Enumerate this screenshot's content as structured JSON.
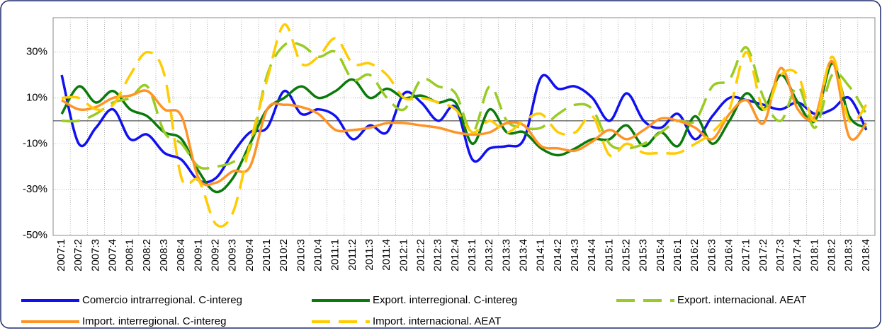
{
  "chart_data": {
    "type": "line",
    "categories": [
      "2007:1",
      "2007:2",
      "2007:3",
      "2007:4",
      "2008:1",
      "2008:2",
      "2008:3",
      "2008:4",
      "2009:1",
      "2009:2",
      "2009:3",
      "2009:4",
      "2010:1",
      "2010:2",
      "2010:3",
      "2010:4",
      "2011:1",
      "2011:2",
      "2011:3",
      "2011:4",
      "2012:1",
      "2012:2",
      "2012:3",
      "2012:4",
      "2013:1",
      "2013:2",
      "2013:3",
      "2013:4",
      "2014:1",
      "2014:2",
      "2014:3",
      "2014:4",
      "2015:1",
      "2015:2",
      "2015:3",
      "2015:4",
      "2016:1",
      "2016:2",
      "2016:3",
      "2016:4",
      "2017:1",
      "2017:2",
      "2017:3",
      "2017:4",
      "2018:1",
      "2018:2",
      "2018:3",
      "2018:4"
    ],
    "ylim": [
      -50,
      45
    ],
    "yticks": [
      {
        "value": -50,
        "label": "-50%"
      },
      {
        "value": -30,
        "label": "-30%"
      },
      {
        "value": -10,
        "label": "-10%"
      },
      {
        "value": 10,
        "label": "10%"
      },
      {
        "value": 30,
        "label": "30%"
      }
    ],
    "grid": true,
    "series": [
      {
        "name": "Comercio intrarregional. C-intereg",
        "color": "#1010f0",
        "dashed": false,
        "values": [
          20,
          -10,
          -3,
          5,
          -8,
          -6,
          -14,
          -17,
          -26,
          -25,
          -14,
          -5,
          -3,
          13,
          3,
          5,
          2,
          -8,
          -2,
          -5,
          12,
          8,
          0,
          6,
          -17,
          -12,
          -11,
          -8,
          19,
          14,
          15,
          10,
          0,
          12,
          0,
          -3,
          3,
          -8,
          2,
          10,
          9,
          7,
          5,
          8,
          3,
          5,
          10,
          -4
        ]
      },
      {
        "name": "Export. interregional. C-intereg",
        "color": "#0a7a0a",
        "dashed": false,
        "values": [
          3,
          15,
          8,
          13,
          5,
          2,
          -5,
          -8,
          -22,
          -31,
          -25,
          -10,
          5,
          10,
          15,
          10,
          13,
          18,
          10,
          14,
          10,
          11,
          8,
          8,
          -10,
          5,
          -5,
          -5,
          -12,
          -15,
          -12,
          -8,
          -8,
          -2,
          -11,
          -5,
          -11,
          2,
          -10,
          0,
          12,
          5,
          20,
          8,
          0,
          25,
          2,
          -3
        ]
      },
      {
        "name": "Export. internacional. AEAT",
        "color": "#99cc22",
        "dashed": true,
        "values": [
          0,
          0,
          3,
          8,
          10,
          15,
          -5,
          -10,
          -20,
          -20,
          -18,
          -12,
          20,
          33,
          33,
          28,
          30,
          18,
          20,
          10,
          5,
          18,
          15,
          12,
          -5,
          15,
          0,
          -3,
          -3,
          3,
          7,
          5,
          -10,
          -12,
          -10,
          -5,
          0,
          0,
          15,
          18,
          32,
          10,
          0,
          15,
          -3,
          20,
          15,
          3
        ]
      },
      {
        "name": "Import. interregional. C-intereg",
        "color": "#ff9426",
        "dashed": false,
        "values": [
          9,
          5,
          6,
          10,
          11,
          13,
          5,
          2,
          -25,
          -27,
          -22,
          -20,
          5,
          7,
          6,
          3,
          -4,
          -4,
          -3,
          -1,
          -1,
          -2,
          -3,
          -5,
          -6,
          -5,
          -1,
          -2,
          -11,
          -12,
          -13,
          -9,
          -4,
          -8,
          -4,
          1,
          0,
          -3,
          -8,
          3,
          9,
          -1,
          23,
          5,
          2,
          26,
          -7,
          -1
        ]
      },
      {
        "name": "Import. internacional. AEAT",
        "color": "#ffcc00",
        "dashed": true,
        "values": [
          10,
          10,
          5,
          7,
          20,
          30,
          20,
          -25,
          -26,
          -45,
          -40,
          -10,
          18,
          42,
          25,
          28,
          36,
          25,
          25,
          20,
          10,
          10,
          8,
          5,
          -5,
          0,
          -5,
          0,
          3,
          -5,
          -5,
          2,
          -15,
          -10,
          -14,
          -14,
          -14,
          -10,
          -5,
          5,
          30,
          5,
          20,
          20,
          0,
          28,
          0,
          7
        ]
      }
    ]
  }
}
